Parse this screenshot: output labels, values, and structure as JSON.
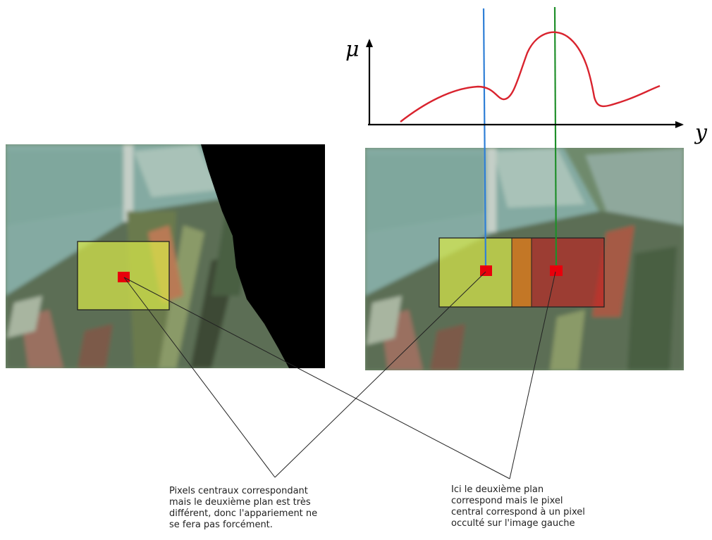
{
  "graph": {
    "y_axis_label": "μ",
    "x_axis_label": "y",
    "curve_color": "#d9232e",
    "blue_line_color": "#2f7fd6",
    "green_line_color": "#1f8f2a"
  },
  "left_image": {
    "window_color": "#d7e84a",
    "center_pixel_color": "#e8000b"
  },
  "right_image": {
    "window_left_color": "#d7e84a",
    "window_middle_color": "#e07a1a",
    "window_right_color": "#c41e1e",
    "center_pixel_color": "#e8000b"
  },
  "captions": {
    "left": "Pixels centraux correspondant\nmais le deuxième plan est très\ndifférent, donc l'appariement ne\nse fera pas forcément.",
    "right": "Ici le deuxième plan\ncorrespond mais le pixel\ncentral correspond à un pixel\nocculté sur l'image gauche"
  }
}
